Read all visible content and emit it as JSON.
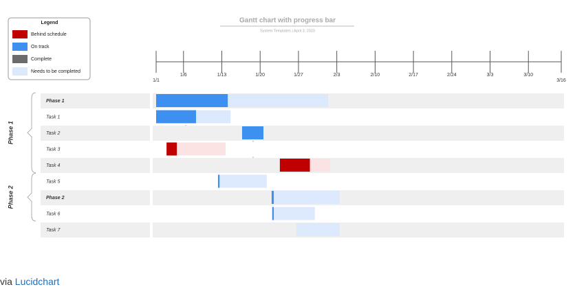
{
  "chart_data": {
    "type": "gantt",
    "title": "Gantt chart with progress bar",
    "subtitle": "System Templates  |  April 3, 2023",
    "legend": {
      "title": "Legend",
      "items": [
        {
          "name": "Behind schedule",
          "color": "#c00000"
        },
        {
          "name": "On track",
          "color": "#3d8ff0"
        },
        {
          "name": "Complete",
          "color": "#6b6b6b"
        },
        {
          "name": "Needs to be completed",
          "color": "#dce8fb"
        }
      ]
    },
    "xlim": [
      0,
      74
    ],
    "xticks": [
      {
        "value": 0,
        "label": "1/1"
      },
      {
        "value": 5,
        "label": "1/6"
      },
      {
        "value": 12,
        "label": "1/13"
      },
      {
        "value": 19,
        "label": "1/20"
      },
      {
        "value": 26,
        "label": "1/27"
      },
      {
        "value": 33,
        "label": "2/3"
      },
      {
        "value": 40,
        "label": "2/10"
      },
      {
        "value": 47,
        "label": "2/17"
      },
      {
        "value": 54,
        "label": "2/24"
      },
      {
        "value": 61,
        "label": "3/3"
      },
      {
        "value": 68,
        "label": "3/10"
      },
      {
        "value": 74,
        "label": "3/16"
      }
    ],
    "groups": [
      {
        "name": "Phase 1",
        "rows": 5
      },
      {
        "name": "Phase 2",
        "rows": 3
      }
    ],
    "rows": [
      {
        "name": "Phase 1",
        "bold": true,
        "segments": [
          {
            "start": 0,
            "end": 13.1,
            "color": "#3d8ff0"
          },
          {
            "start": 13.1,
            "end": 31.4,
            "color": "#dce8fb"
          }
        ]
      },
      {
        "name": "Task 1",
        "segments": [
          {
            "start": 0,
            "end": 7.3,
            "color": "#3d8ff0"
          },
          {
            "start": 7.3,
            "end": 13.6,
            "color": "#dce8fb"
          }
        ]
      },
      {
        "name": "Task 2",
        "segments": [
          {
            "start": 15.7,
            "end": 19.6,
            "color": "#3d8ff0"
          }
        ]
      },
      {
        "name": "Task 3",
        "segments": [
          {
            "start": 1.9,
            "end": 3.8,
            "color": "#c00000"
          },
          {
            "start": 3.8,
            "end": 12.7,
            "color": "#fbe3e3"
          }
        ]
      },
      {
        "name": "Task 4",
        "segments": [
          {
            "start": 22.6,
            "end": 28.1,
            "color": "#c00000"
          },
          {
            "start": 28.1,
            "end": 31.8,
            "color": "#fbe3e3"
          }
        ]
      },
      {
        "name": "Task 5",
        "segments": [
          {
            "start": 11.3,
            "end": 11.6,
            "color": "#3d8ff0"
          },
          {
            "start": 11.6,
            "end": 20.2,
            "color": "#dce8fb"
          }
        ]
      },
      {
        "name": "Phase 2",
        "bold": true,
        "segments": [
          {
            "start": 21.1,
            "end": 21.5,
            "color": "#3d8ff0"
          },
          {
            "start": 21.5,
            "end": 33.5,
            "color": "#dce8fb"
          }
        ]
      },
      {
        "name": "Task 6",
        "segments": [
          {
            "start": 21.2,
            "end": 21.5,
            "color": "#3d8ff0"
          },
          {
            "start": 21.5,
            "end": 29.0,
            "color": "#dce8fb"
          }
        ]
      },
      {
        "name": "Task 7",
        "segments": [
          {
            "start": 25.6,
            "end": 33.5,
            "color": "#dce8fb"
          }
        ]
      }
    ]
  },
  "footer": {
    "prefix": "via",
    "link": "Lucidchart"
  }
}
